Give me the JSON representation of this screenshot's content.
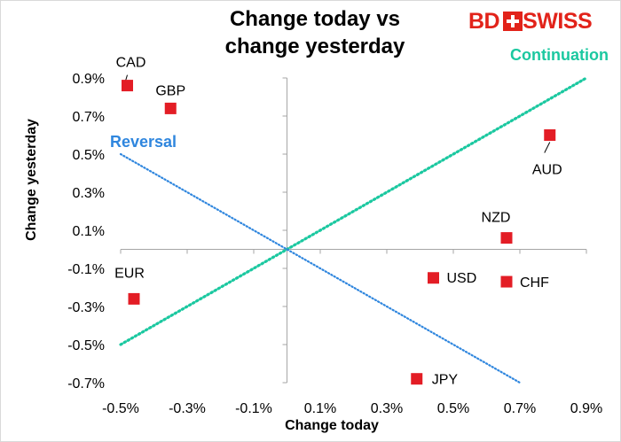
{
  "title_line1": "Change today vs",
  "title_line2": "change yesterday",
  "logo": {
    "bd": "BD",
    "swiss": "SWISS"
  },
  "colors": {
    "marker": "#e31d25",
    "continuation": "#1bc8a0",
    "reversal": "#2f86de",
    "axis": "#a6a6a6"
  },
  "chart_data": {
    "type": "scatter",
    "xlabel": "Change today",
    "ylabel": "Change yesterday",
    "xlim": [
      -0.5,
      0.9
    ],
    "ylim": [
      -0.7,
      0.9
    ],
    "xticks": [
      -0.5,
      -0.3,
      -0.1,
      0.1,
      0.3,
      0.5,
      0.7,
      0.9
    ],
    "xtick_labels": [
      "-0.5%",
      "-0.3%",
      "-0.1%",
      "0.1%",
      "0.3%",
      "0.5%",
      "0.7%",
      "0.9%"
    ],
    "yticks": [
      0.9,
      0.7,
      0.5,
      0.3,
      0.1,
      -0.1,
      -0.3,
      -0.5,
      -0.7
    ],
    "ytick_labels": [
      "0.9%",
      "0.7%",
      "0.5%",
      "0.3%",
      "0.1%",
      "-0.1%",
      "-0.3%",
      "-0.5%",
      "-0.7%"
    ],
    "points": [
      {
        "label": "CAD",
        "x": -0.48,
        "y": 0.86
      },
      {
        "label": "GBP",
        "x": -0.35,
        "y": 0.74
      },
      {
        "label": "AUD",
        "x": 0.79,
        "y": 0.6
      },
      {
        "label": "NZD",
        "x": 0.66,
        "y": 0.06
      },
      {
        "label": "USD",
        "x": 0.44,
        "y": -0.15
      },
      {
        "label": "CHF",
        "x": 0.66,
        "y": -0.17
      },
      {
        "label": "EUR",
        "x": -0.46,
        "y": -0.26
      },
      {
        "label": "JPY",
        "x": 0.39,
        "y": -0.68
      }
    ],
    "lines": [
      {
        "name": "Continuation",
        "x": [
          -0.5,
          0.9
        ],
        "y": [
          -0.5,
          0.9
        ]
      },
      {
        "name": "Reversal",
        "x": [
          -0.5,
          0.7
        ],
        "y": [
          0.5,
          -0.7
        ]
      }
    ]
  }
}
